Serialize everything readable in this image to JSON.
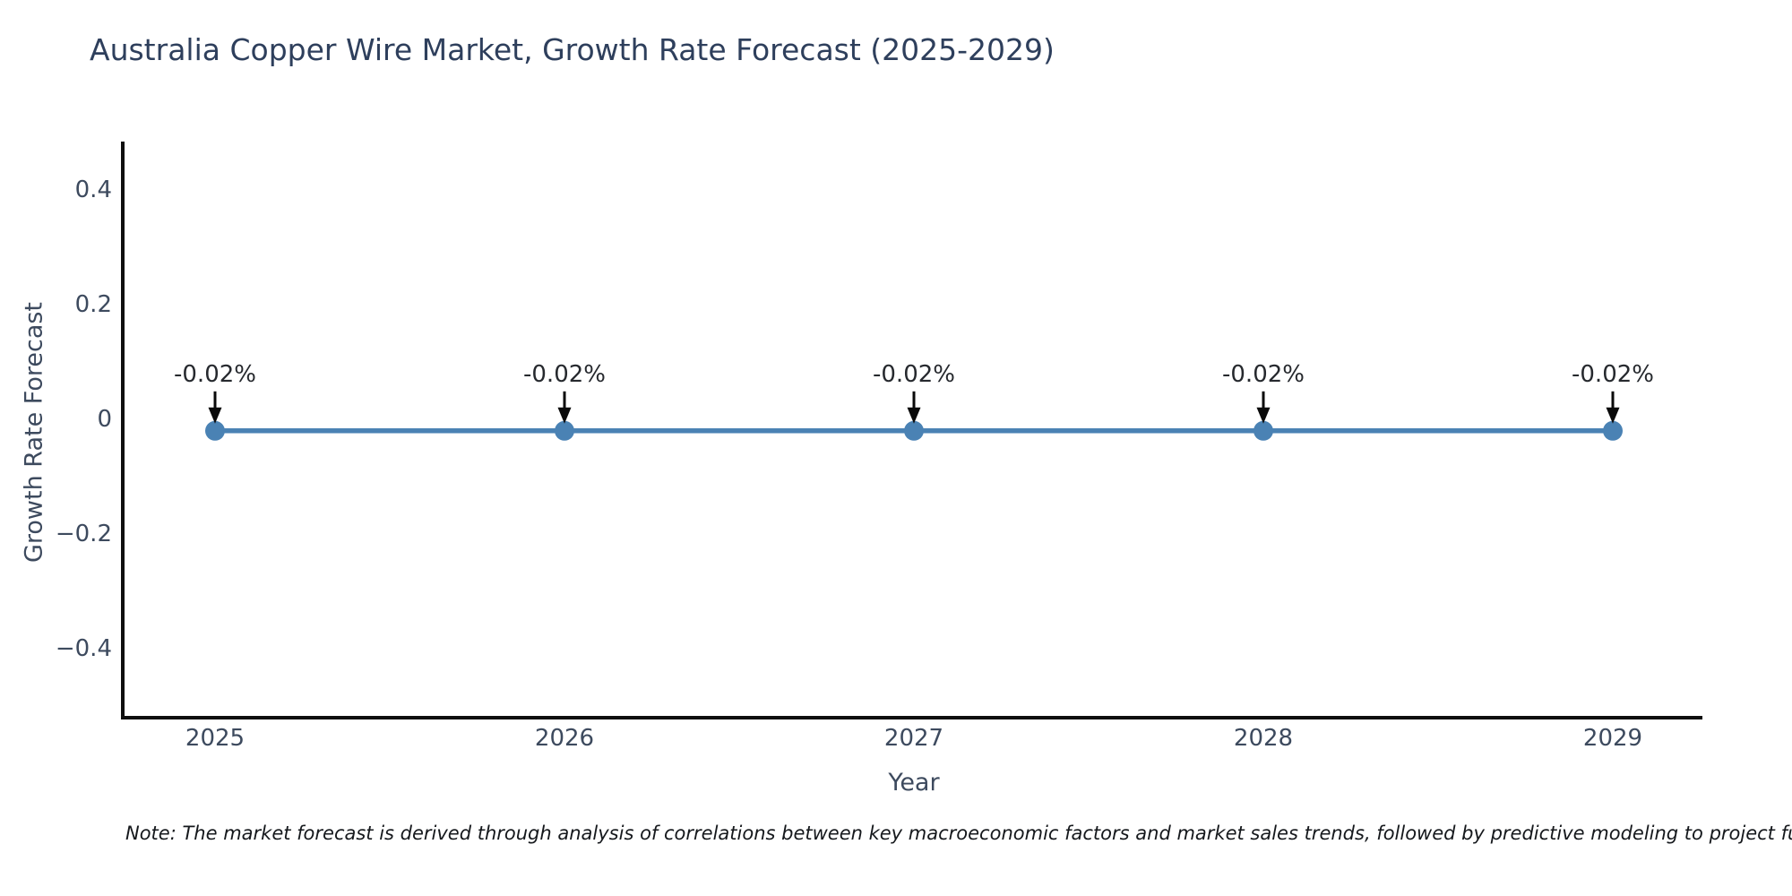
{
  "chart_data": {
    "type": "line",
    "title": "Australia Copper Wire Market, Growth Rate Forecast (2025-2029)",
    "xlabel": "Year",
    "ylabel": "Growth Rate Forecast",
    "x": [
      2025,
      2026,
      2027,
      2028,
      2029
    ],
    "xtick_labels": [
      "2025",
      "2026",
      "2027",
      "2028",
      "2029"
    ],
    "series": [
      {
        "name": "Growth Rate Forecast",
        "values": [
          -0.02,
          -0.02,
          -0.02,
          -0.02,
          -0.02
        ]
      }
    ],
    "point_labels": [
      "-0.02%",
      "-0.02%",
      "-0.02%",
      "-0.02%",
      "-0.02%"
    ],
    "yticks": [
      0.4,
      0.2,
      0,
      -0.2,
      -0.4
    ],
    "ytick_labels": [
      "0.4",
      "0.2",
      "0",
      "−0.2",
      "−0.4"
    ],
    "ylim": [
      -0.52,
      0.48
    ],
    "grid": false,
    "legend": "none",
    "line_color": "#4a82b4",
    "marker_color": "#4a82b4",
    "annotation_arrow_color": "#0a0a0a",
    "axis_spine_color": "#0f0f0f"
  },
  "note": "Note: The market forecast is derived through analysis of correlations between key macroeconomic factors and market sales trends, followed by predictive modeling to project future sales."
}
